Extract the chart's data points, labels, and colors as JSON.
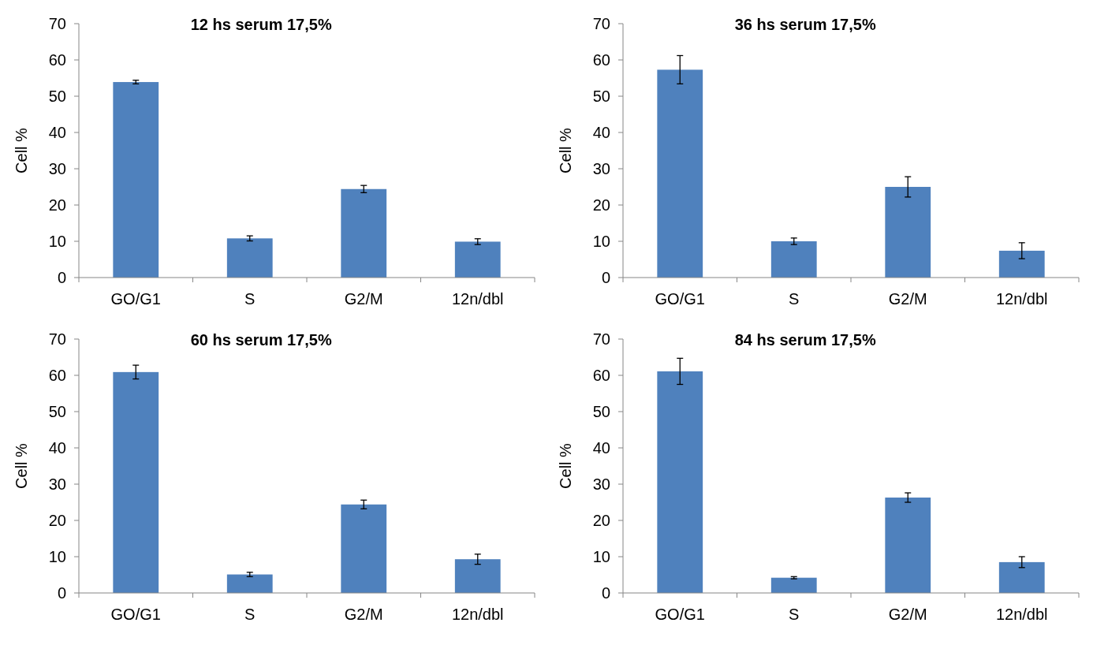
{
  "chart_data": [
    {
      "type": "bar",
      "title": "12 hs serum 17,5%",
      "ylabel": "Cell %",
      "categories": [
        "GO/G1",
        "S",
        "G2/M",
        "12n/dbl"
      ],
      "values": [
        53.9,
        10.8,
        24.4,
        9.9
      ],
      "errors": [
        0.5,
        0.7,
        1,
        0.8
      ],
      "color": "#4f81bd",
      "ylim": [
        0,
        70
      ],
      "yticks": [
        0,
        10,
        20,
        30,
        40,
        50,
        60,
        70
      ],
      "grid": false
    },
    {
      "type": "bar",
      "title": "36 hs serum 17,5%",
      "ylabel": "Cell %",
      "categories": [
        "GO/G1",
        "S",
        "G2/M",
        "12n/dbl"
      ],
      "values": [
        57.3,
        10,
        25,
        7.4
      ],
      "errors": [
        3.9,
        0.9,
        2.8,
        2.2
      ],
      "color": "#4f81bd",
      "ylim": [
        0,
        70
      ],
      "yticks": [
        0,
        10,
        20,
        30,
        40,
        50,
        60,
        70
      ],
      "grid": false
    },
    {
      "type": "bar",
      "title": "60 hs serum 17,5%",
      "ylabel": "Cell %",
      "categories": [
        "GO/G1",
        "S",
        "G2/M",
        "12n/dbl"
      ],
      "values": [
        60.9,
        5.1,
        24.4,
        9.3
      ],
      "errors": [
        1.9,
        0.6,
        1.2,
        1.4
      ],
      "color": "#4f81bd",
      "ylim": [
        0,
        70
      ],
      "yticks": [
        0,
        10,
        20,
        30,
        40,
        50,
        60,
        70
      ],
      "grid": false
    },
    {
      "type": "bar",
      "title": "84 hs serum 17,5%",
      "ylabel": "Cell %",
      "categories": [
        "GO/G1",
        "S",
        "G2/M",
        "12n/dbl"
      ],
      "values": [
        61.1,
        4.2,
        26.3,
        8.5
      ],
      "errors": [
        3.6,
        0.3,
        1.3,
        1.5
      ],
      "color": "#4f81bd",
      "ylim": [
        0,
        70
      ],
      "yticks": [
        0,
        10,
        20,
        30,
        40,
        50,
        60,
        70
      ],
      "grid": false
    }
  ]
}
